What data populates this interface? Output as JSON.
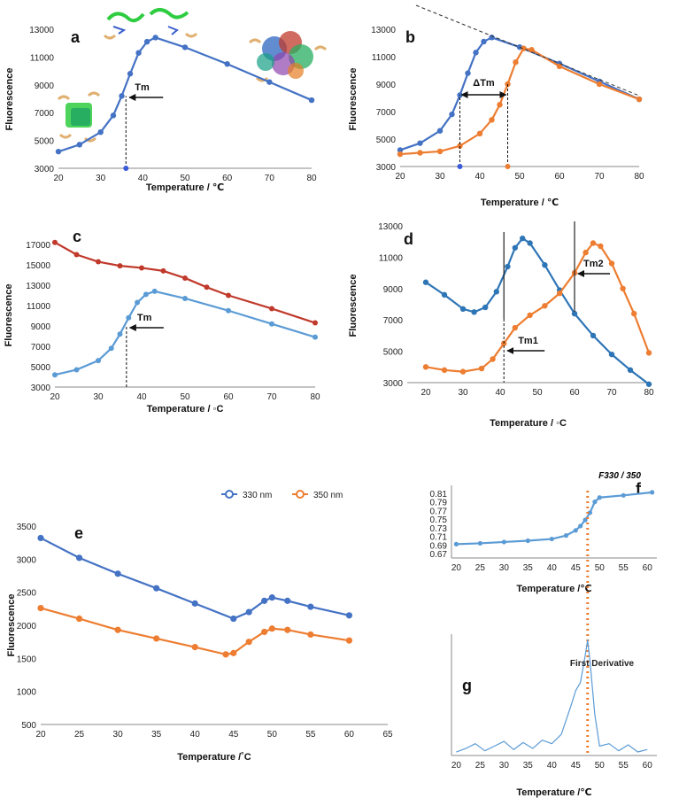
{
  "chart_data": [
    {
      "panel": "a",
      "type": "line",
      "ylabel": "Fluorescence",
      "xlabel": "Temperature / ℃",
      "xlim": [
        20,
        80
      ],
      "ylim": [
        3000,
        13000
      ],
      "xticks": [
        20,
        30,
        40,
        50,
        60,
        70,
        80
      ],
      "yticks": [
        3000,
        5000,
        7000,
        9000,
        11000,
        13000
      ],
      "series": [
        {
          "name": "curve",
          "color": "#4472c4",
          "x": [
            20,
            25,
            30,
            33,
            35,
            37,
            39,
            41,
            43,
            50,
            60,
            70,
            80
          ],
          "y": [
            4200,
            4700,
            5600,
            6800,
            8200,
            9800,
            11300,
            12100,
            12400,
            11700,
            10500,
            9200,
            7900
          ]
        }
      ],
      "markers": [
        {
          "label": "Tm",
          "x": 36
        }
      ]
    },
    {
      "panel": "b",
      "type": "line",
      "ylabel": "Fluorescence",
      "xlabel": "Temperature / ℃",
      "xlim": [
        20,
        80
      ],
      "ylim": [
        3000,
        13000
      ],
      "xticks": [
        20,
        30,
        40,
        50,
        60,
        70,
        80
      ],
      "yticks": [
        3000,
        5000,
        7000,
        9000,
        11000,
        13000
      ],
      "series": [
        {
          "name": "blue",
          "color": "#4472c4",
          "x": [
            20,
            25,
            30,
            33,
            35,
            37,
            39,
            41,
            43,
            50,
            60,
            70,
            80
          ],
          "y": [
            4200,
            4700,
            5600,
            6800,
            8200,
            9800,
            11300,
            12100,
            12400,
            11700,
            10500,
            9200,
            7900
          ]
        },
        {
          "name": "orange",
          "color": "#ed7d31",
          "x": [
            20,
            25,
            30,
            35,
            40,
            43,
            45,
            47,
            49,
            51,
            53,
            60,
            70,
            80
          ],
          "y": [
            3900,
            4000,
            4100,
            4500,
            5400,
            6400,
            7500,
            9000,
            10600,
            11600,
            11500,
            10300,
            9000,
            7900
          ]
        }
      ],
      "markers": [
        {
          "label": "ΔTm",
          "x1": 35,
          "x2": 47
        }
      ]
    },
    {
      "panel": "c",
      "type": "line",
      "ylabel": "Fluorescence",
      "xlabel": "Temperature / ◦C",
      "xlim": [
        20,
        80
      ],
      "ylim": [
        3000,
        17000
      ],
      "xticks": [
        20,
        30,
        40,
        50,
        60,
        70,
        80
      ],
      "yticks": [
        3000,
        5000,
        7000,
        9000,
        11000,
        13000,
        15000,
        17000
      ],
      "series": [
        {
          "name": "red",
          "color": "#c0392b",
          "x": [
            20,
            25,
            30,
            35,
            40,
            45,
            50,
            55,
            60,
            70,
            80
          ],
          "y": [
            17200,
            16000,
            15300,
            14900,
            14700,
            14400,
            13700,
            12800,
            12000,
            10700,
            9300
          ]
        },
        {
          "name": "light blue",
          "color": "#5b9bd5",
          "x": [
            20,
            25,
            30,
            33,
            35,
            37,
            39,
            41,
            43,
            50,
            60,
            70,
            80
          ],
          "y": [
            4200,
            4700,
            5600,
            6800,
            8200,
            9800,
            11300,
            12100,
            12400,
            11700,
            10500,
            9200,
            7900
          ]
        }
      ],
      "markers": [
        {
          "label": "Tm",
          "x": 36.5
        }
      ]
    },
    {
      "panel": "d",
      "type": "line",
      "ylabel": "Fluorescence",
      "xlabel": "Temperature / ◦C",
      "xlim": [
        15,
        80
      ],
      "ylim": [
        3000,
        13000
      ],
      "xticks": [
        20,
        30,
        40,
        50,
        60,
        70,
        80
      ],
      "yticks": [
        3000,
        5000,
        7000,
        9000,
        11000,
        13000
      ],
      "series": [
        {
          "name": "blue",
          "color": "#2e75b6",
          "x": [
            20,
            25,
            30,
            33,
            36,
            39,
            42,
            44,
            46,
            48,
            52,
            56,
            60,
            65,
            70,
            75,
            80
          ],
          "y": [
            9400,
            8600,
            7700,
            7500,
            7800,
            8800,
            10400,
            11600,
            12200,
            11900,
            10500,
            8900,
            7400,
            6000,
            4800,
            3800,
            2900
          ]
        },
        {
          "name": "orange",
          "color": "#ed7d31",
          "x": [
            20,
            25,
            30,
            35,
            38,
            41,
            44,
            48,
            52,
            56,
            60,
            63,
            65,
            67,
            70,
            73,
            76,
            80
          ],
          "y": [
            4000,
            3800,
            3700,
            3900,
            4500,
            5500,
            6500,
            7300,
            7900,
            8700,
            10000,
            11300,
            11900,
            11700,
            10600,
            9000,
            7400,
            4900
          ]
        }
      ],
      "markers": [
        {
          "label": "Tm1",
          "x": 41
        },
        {
          "label": "Tm2",
          "x": 60
        }
      ]
    },
    {
      "panel": "e",
      "type": "line",
      "ylabel": "Fluorescence",
      "xlabel": "Temperature /˚C",
      "xlim": [
        20,
        65
      ],
      "ylim": [
        500,
        3500
      ],
      "xticks": [
        20,
        25,
        30,
        35,
        40,
        45,
        50,
        55,
        60,
        65
      ],
      "yticks": [
        500,
        1000,
        1500,
        2000,
        2500,
        3000,
        3500
      ],
      "legend": [
        "330 nm",
        "350 nm"
      ],
      "series": [
        {
          "name": "330 nm",
          "color": "#4472c4",
          "x": [
            20,
            25,
            30,
            35,
            40,
            45,
            47,
            49,
            50,
            52,
            55,
            60
          ],
          "y": [
            3320,
            3020,
            2780,
            2560,
            2330,
            2100,
            2200,
            2370,
            2420,
            2370,
            2280,
            2150
          ]
        },
        {
          "name": "350 nm",
          "color": "#ed7d31",
          "x": [
            20,
            25,
            30,
            35,
            40,
            44,
            45,
            47,
            49,
            50,
            52,
            55,
            60
          ],
          "y": [
            2260,
            2100,
            1930,
            1800,
            1670,
            1560,
            1580,
            1750,
            1900,
            1950,
            1930,
            1860,
            1770
          ]
        }
      ]
    },
    {
      "panel": "f",
      "type": "line",
      "title": "F330 / 350",
      "xlabel": "Temperature /℃",
      "xlim": [
        19,
        62
      ],
      "ylim": [
        0.66,
        0.82
      ],
      "xticks": [
        20,
        25,
        30,
        35,
        40,
        45,
        50,
        55,
        60
      ],
      "yticks": [
        0.67,
        0.69,
        0.71,
        0.73,
        0.75,
        0.77,
        0.79,
        0.81
      ],
      "series": [
        {
          "name": "ratio",
          "color": "#5b9bd5",
          "x": [
            20,
            25,
            30,
            35,
            40,
            43,
            45,
            46,
            47,
            48,
            49,
            50,
            55,
            61
          ],
          "y": [
            0.692,
            0.694,
            0.697,
            0.7,
            0.704,
            0.712,
            0.724,
            0.734,
            0.748,
            0.765,
            0.79,
            0.8,
            0.805,
            0.812
          ]
        }
      ],
      "markers": [
        {
          "x": 47.5
        }
      ]
    },
    {
      "panel": "g",
      "type": "line",
      "title": "First Derivative",
      "xlabel": "Temperature /℃",
      "xlim": [
        19,
        62
      ],
      "ylim": [
        0,
        1
      ],
      "xticks": [
        20,
        25,
        30,
        35,
        40,
        45,
        50,
        55,
        60
      ],
      "series": [
        {
          "name": "derivative",
          "color": "#5b9bd5",
          "x": [
            20,
            22,
            24,
            26,
            28,
            30,
            32,
            34,
            36,
            38,
            40,
            42,
            43,
            44,
            45,
            46,
            47,
            47.5,
            48,
            49,
            50,
            52,
            54,
            56,
            58,
            60
          ],
          "y": [
            0.03,
            0.06,
            0.1,
            0.04,
            0.08,
            0.12,
            0.05,
            0.11,
            0.06,
            0.13,
            0.1,
            0.18,
            0.3,
            0.42,
            0.55,
            0.62,
            0.85,
            0.98,
            0.8,
            0.35,
            0.08,
            0.1,
            0.04,
            0.09,
            0.03,
            0.05
          ]
        }
      ],
      "markers": [
        {
          "x": 47.5
        }
      ]
    }
  ]
}
